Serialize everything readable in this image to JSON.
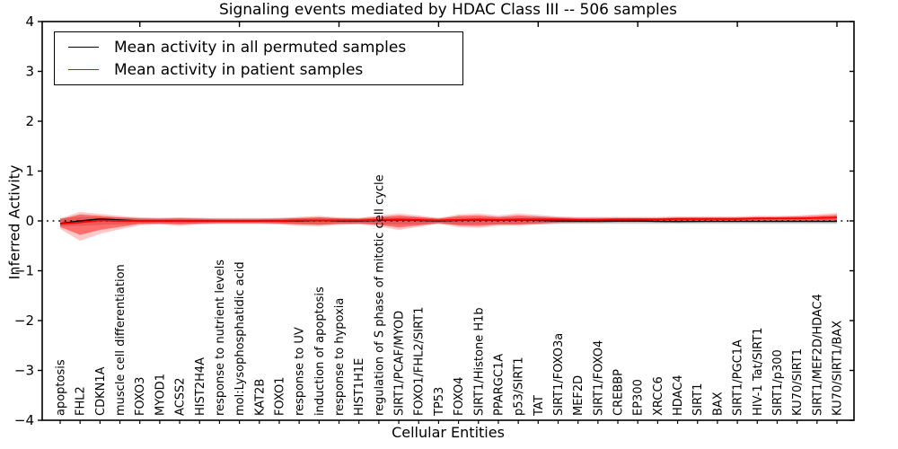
{
  "chart": {
    "title": "Signaling events mediated by HDAC Class III -- 506 samples",
    "xlabel": "Cellular Entities",
    "ylabel": "Inferred Activity",
    "legend": [
      {
        "label": "Mean activity in all permuted samples",
        "color": "#000000"
      },
      {
        "label": "Mean activity in patient samples",
        "color": "#ff0000"
      }
    ]
  },
  "chart_data": {
    "type": "line",
    "title": "Signaling events mediated by HDAC Class III -- 506 samples",
    "xlabel": "Cellular Entities",
    "ylabel": "Inferred Activity",
    "ylim": [
      -4,
      4
    ],
    "yticks": [
      4,
      3,
      2,
      1,
      0,
      -1,
      -2,
      -3,
      -4
    ],
    "grid": false,
    "legend_position": "upper left",
    "zero_line": 0,
    "categories": [
      "apoptosis",
      "FHL2",
      "CDKN1A",
      "muscle cell differentiation",
      "FOXO3",
      "MYOD1",
      "ACSS2",
      "HIST2H4A",
      "response to nutrient levels",
      "mol:Lysophosphatidic acid",
      "KAT2B",
      "FOXO1",
      "response to UV",
      "induction of apoptosis",
      "response to hypoxia",
      "HIST1H1E",
      "regulation of S phase of mitotic cell cycle",
      "SIRT1/PCAF/MYOD",
      "FOXO1/FHL2/SIRT1",
      "TP53",
      "FOXO4",
      "SIRT1/Histone H1b",
      "PPARGC1A",
      "p53/SIRT1",
      "TAT",
      "SIRT1/FOXO3a",
      "MEF2D",
      "SIRT1/FOXO4",
      "CREBBP",
      "EP300",
      "XRCC6",
      "HDAC4",
      "SIRT1",
      "BAX",
      "SIRT1/PGC1A",
      "HIV-1 Tat/SIRT1",
      "SIRT1/p300",
      "KU70/SIRT1",
      "SIRT1/MEF2D/HDAC4",
      "KU70/SIRT1/BAX"
    ],
    "series": [
      {
        "name": "Mean activity in all permuted samples",
        "color": "#000000",
        "values": [
          -0.05,
          0.0,
          0.04,
          0.02,
          0.0,
          0.0,
          0.0,
          0.0,
          0.0,
          0.0,
          0.0,
          0.0,
          0.0,
          0.01,
          0.0,
          0.0,
          0.01,
          0.02,
          0.01,
          0.0,
          0.01,
          0.02,
          0.01,
          0.02,
          0.01,
          0.0,
          0.0,
          0.0,
          0.0,
          0.0,
          -0.01,
          -0.01,
          -0.01,
          -0.01,
          -0.01,
          -0.01,
          -0.01,
          -0.01,
          -0.01,
          -0.01
        ]
      },
      {
        "name": "Mean activity in patient samples",
        "color": "#ff0000",
        "values": [
          -0.06,
          -0.03,
          0.01,
          0.0,
          0.0,
          0.0,
          0.0,
          0.0,
          0.0,
          0.0,
          0.0,
          0.0,
          0.01,
          0.01,
          0.01,
          0.01,
          0.02,
          0.03,
          0.02,
          0.01,
          0.02,
          0.03,
          0.02,
          0.03,
          0.03,
          0.03,
          0.02,
          0.02,
          0.03,
          0.03,
          0.03,
          0.04,
          0.04,
          0.04,
          0.04,
          0.05,
          0.05,
          0.05,
          0.06,
          0.07
        ]
      }
    ],
    "bands": {
      "patient_outer": {
        "color": "#ff0000",
        "opacity": 0.22,
        "lo": [
          -0.16,
          -0.4,
          -0.26,
          -0.17,
          -0.09,
          -0.07,
          -0.1,
          -0.07,
          -0.06,
          -0.06,
          -0.06,
          -0.07,
          -0.1,
          -0.11,
          -0.08,
          -0.07,
          -0.11,
          -0.18,
          -0.12,
          -0.06,
          -0.12,
          -0.14,
          -0.1,
          -0.1,
          -0.07,
          -0.05,
          -0.04,
          -0.04,
          -0.03,
          -0.03,
          -0.03,
          -0.04,
          -0.03,
          -0.02,
          -0.02,
          -0.02,
          -0.02,
          -0.01,
          -0.01,
          -0.01
        ],
        "hi": [
          0.05,
          0.18,
          0.14,
          0.1,
          0.07,
          0.06,
          0.07,
          0.06,
          0.05,
          0.05,
          0.05,
          0.06,
          0.08,
          0.1,
          0.07,
          0.06,
          0.11,
          0.15,
          0.11,
          0.06,
          0.13,
          0.15,
          0.11,
          0.15,
          0.12,
          0.09,
          0.08,
          0.08,
          0.08,
          0.08,
          0.08,
          0.09,
          0.09,
          0.09,
          0.09,
          0.1,
          0.1,
          0.11,
          0.13,
          0.16
        ]
      },
      "patient_inner": {
        "color": "#ff0000",
        "opacity": 0.45,
        "lo": [
          -0.12,
          -0.28,
          -0.18,
          -0.12,
          -0.06,
          -0.05,
          -0.07,
          -0.05,
          -0.04,
          -0.04,
          -0.04,
          -0.05,
          -0.07,
          -0.08,
          -0.06,
          -0.05,
          -0.08,
          -0.13,
          -0.09,
          -0.04,
          -0.09,
          -0.1,
          -0.07,
          -0.07,
          -0.05,
          -0.03,
          -0.03,
          -0.03,
          -0.02,
          -0.02,
          -0.02,
          -0.03,
          -0.02,
          -0.01,
          -0.01,
          -0.01,
          -0.01,
          0.0,
          0.0,
          0.0
        ],
        "hi": [
          0.03,
          0.13,
          0.1,
          0.07,
          0.05,
          0.04,
          0.05,
          0.04,
          0.03,
          0.03,
          0.03,
          0.04,
          0.06,
          0.07,
          0.05,
          0.04,
          0.08,
          0.11,
          0.08,
          0.04,
          0.1,
          0.11,
          0.08,
          0.11,
          0.09,
          0.07,
          0.06,
          0.06,
          0.06,
          0.06,
          0.06,
          0.07,
          0.07,
          0.07,
          0.07,
          0.08,
          0.08,
          0.09,
          0.1,
          0.12
        ]
      },
      "permuted": {
        "color": "#999999",
        "opacity": 0.45,
        "lo": [
          -0.11,
          -0.1,
          -0.08,
          -0.07,
          -0.06,
          -0.06,
          -0.06,
          -0.06,
          -0.06,
          -0.06,
          -0.06,
          -0.06,
          -0.06,
          -0.07,
          -0.06,
          -0.06,
          -0.07,
          -0.07,
          -0.07,
          -0.06,
          -0.07,
          -0.07,
          -0.07,
          -0.07,
          -0.07,
          -0.06,
          -0.06,
          -0.06,
          -0.06,
          -0.06,
          -0.06,
          -0.06,
          -0.06,
          -0.06,
          -0.06,
          -0.06,
          -0.06,
          -0.06,
          -0.06,
          -0.06
        ],
        "hi": [
          0.06,
          0.08,
          0.08,
          0.07,
          0.06,
          0.06,
          0.06,
          0.06,
          0.06,
          0.06,
          0.06,
          0.06,
          0.06,
          0.07,
          0.06,
          0.06,
          0.07,
          0.07,
          0.07,
          0.06,
          0.07,
          0.07,
          0.07,
          0.07,
          0.07,
          0.06,
          0.06,
          0.06,
          0.06,
          0.06,
          0.05,
          0.05,
          0.05,
          0.05,
          0.05,
          0.05,
          0.05,
          0.05,
          0.05,
          0.05
        ]
      }
    }
  }
}
